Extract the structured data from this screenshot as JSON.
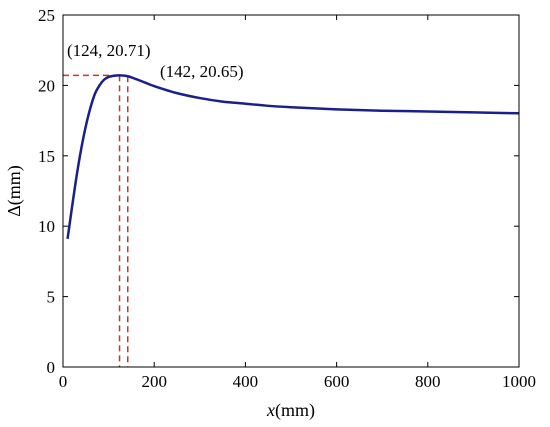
{
  "chart_data": {
    "type": "line",
    "xlabel_italic": "x",
    "xlabel_unit": "(mm)",
    "ylabel": "Δ(mm)",
    "xlim": [
      0,
      1000
    ],
    "ylim": [
      0,
      25
    ],
    "xticks": [
      0,
      200,
      400,
      600,
      800,
      1000
    ],
    "yticks": [
      0,
      5,
      10,
      15,
      20,
      25
    ],
    "grid": false,
    "series": [
      {
        "color": "#1a1f8c",
        "x": [
          10,
          20,
          30,
          40,
          50,
          60,
          70,
          80,
          90,
          100,
          110,
          124,
          142,
          160,
          180,
          200,
          250,
          300,
          350,
          400,
          450,
          500,
          600,
          700,
          800,
          900,
          1000
        ],
        "y": [
          9.1,
          11.4,
          13.6,
          15.5,
          17.1,
          18.4,
          19.4,
          20.0,
          20.4,
          20.6,
          20.68,
          20.71,
          20.65,
          20.45,
          20.2,
          19.95,
          19.45,
          19.1,
          18.85,
          18.7,
          18.55,
          18.45,
          18.3,
          18.2,
          18.15,
          18.08,
          18.02
        ]
      }
    ],
    "annotations": [
      {
        "text": "(124,  20.71)",
        "x": 124,
        "y": 20.71,
        "color": "#c0392b"
      },
      {
        "text": "(142,  20.65)",
        "x": 142,
        "y": 20.65,
        "color": "#c0392b"
      }
    ]
  }
}
